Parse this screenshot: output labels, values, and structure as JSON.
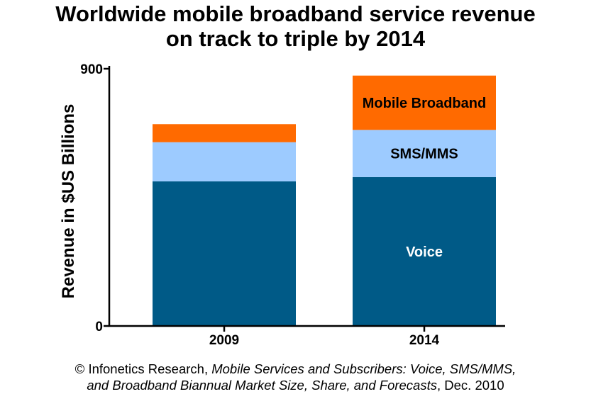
{
  "chart_data": {
    "type": "bar",
    "stacked": true,
    "title_line1": "Worldwide mobile broadband service revenue",
    "title_line2": "on track to triple by 2014",
    "xlabel": "",
    "ylabel": "Revenue in $US Billions",
    "ylim": [
      0,
      900
    ],
    "yticks": [
      "0",
      "900"
    ],
    "categories": [
      "2009",
      "2014"
    ],
    "series": [
      {
        "name": "Voice",
        "color": "#005A87",
        "values": [
          506,
          521
        ]
      },
      {
        "name": "SMS/MMS",
        "color": "#9DCBFF",
        "values": [
          137,
          165
        ]
      },
      {
        "name": "Mobile Broadband",
        "color": "#FF6A00",
        "values": [
          63,
          190
        ]
      }
    ],
    "grid": false,
    "legend": "labels inside 2014 bar"
  },
  "source": {
    "prefix": "© Infonetics Research, ",
    "title_part1": "Mobile Services and Subscribers: Voice, SMS/MMS,",
    "title_part2": "and Broadband Biannual Market Size, Share, and Forecasts",
    "suffix": ", Dec. 2010"
  }
}
